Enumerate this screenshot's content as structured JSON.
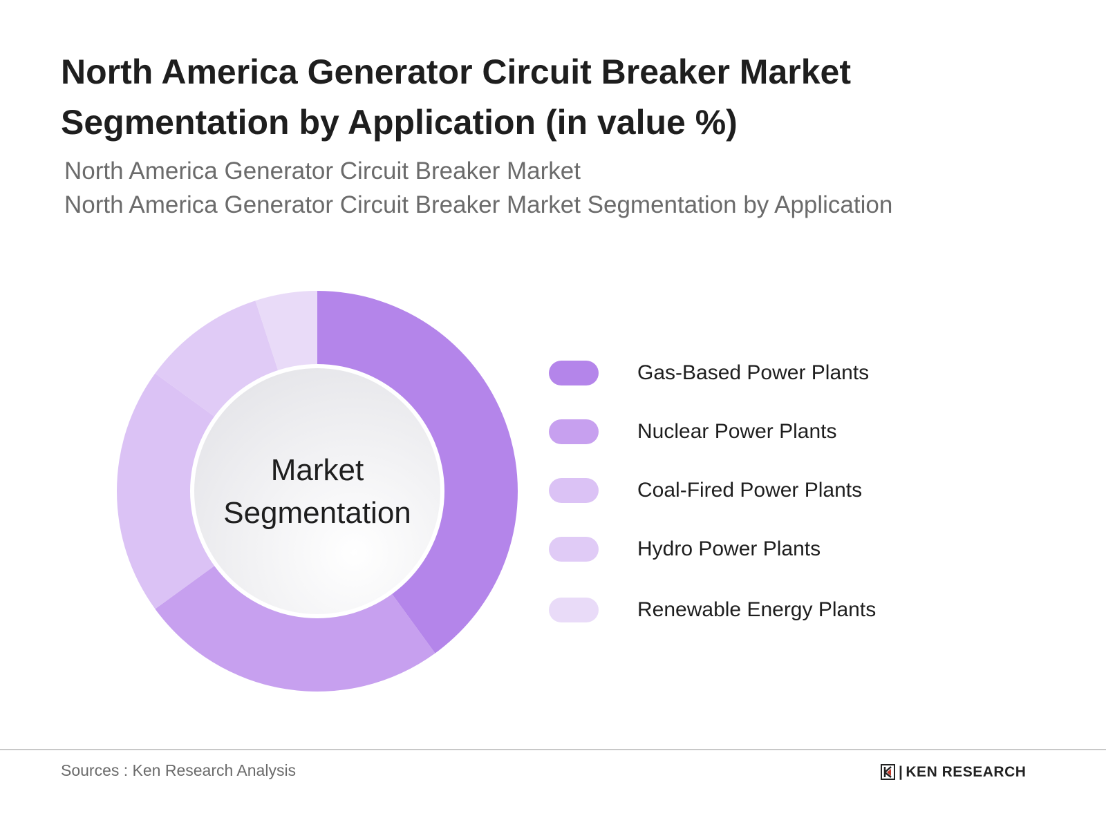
{
  "title": "North America Generator Circuit Breaker Market Segmentation by Application (in value %)",
  "subtitle_1": "North America Generator Circuit Breaker Market",
  "subtitle_2": "North America Generator Circuit Breaker Market Segmentation by Application",
  "source": "Sources : Ken Research Analysis",
  "logo_text": "KEN RESEARCH",
  "chart_data": {
    "type": "pie",
    "variant": "donut",
    "title": "North America Generator Circuit Breaker Market Segmentation by Application (in value %)",
    "center_label_1": "Market",
    "center_label_2": "Segmentation",
    "categories": [
      "Gas-Based Power Plants",
      "Nuclear Power Plants",
      "Coal-Fired Power Plants",
      "Hydro Power Plants",
      "Renewable Energy Plants"
    ],
    "values": [
      40,
      25,
      20,
      10,
      5
    ],
    "colors": [
      "#b485ea",
      "#c7a0ef",
      "#dbc2f5",
      "#e0cbf6",
      "#e9dbf8"
    ],
    "legend_position": "right"
  }
}
